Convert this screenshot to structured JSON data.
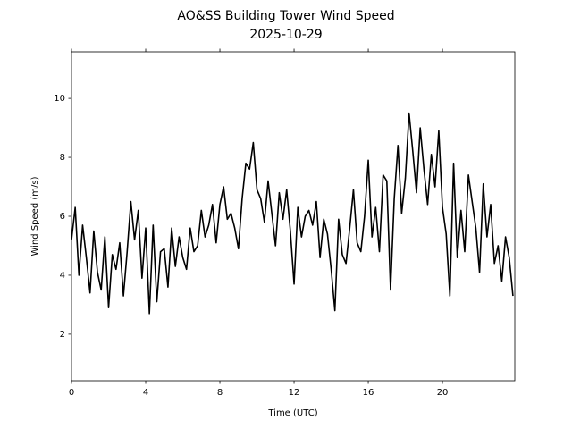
{
  "chart_data": {
    "type": "line",
    "title": "AO&SS Building Tower Wind Speed",
    "subtitle": "2025-10-29",
    "x_label": "Time (UTC)",
    "y_label": "Wind Speed (m/s)",
    "color": "#000000",
    "x": [
      0,
      0.2,
      0.4,
      0.6,
      0.8,
      1,
      1.2,
      1.4,
      1.6,
      1.8,
      2,
      2.2,
      2.4,
      2.6,
      2.8,
      3,
      3.2,
      3.4,
      3.6,
      3.8,
      4,
      4.2,
      4.4,
      4.6,
      4.8,
      5,
      5.2,
      5.4,
      5.6,
      5.8,
      6,
      6.2,
      6.4,
      6.6,
      6.8,
      7,
      7.2,
      7.4,
      7.6,
      7.8,
      8,
      8.2,
      8.4,
      8.6,
      8.8,
      9,
      9.2,
      9.4,
      9.6,
      9.8,
      10,
      10.2,
      10.4,
      10.6,
      10.8,
      11,
      11.2,
      11.4,
      11.6,
      11.8,
      12,
      12.2,
      12.4,
      12.6,
      12.8,
      13,
      13.2,
      13.4,
      13.6,
      13.8,
      14,
      14.2,
      14.4,
      14.6,
      14.8,
      15,
      15.2,
      15.4,
      15.6,
      15.8,
      16,
      16.2,
      16.4,
      16.6,
      16.8,
      17,
      17.2,
      17.4,
      17.6,
      17.8,
      18,
      18.2,
      18.4,
      18.6,
      18.8,
      19,
      19.2,
      19.4,
      19.6,
      19.8,
      20,
      20.2,
      20.4,
      20.6,
      20.8,
      21,
      21.2,
      21.4,
      21.6,
      21.8,
      22,
      22.2,
      22.4,
      22.6,
      22.8,
      23,
      23.2,
      23.4,
      23.6,
      23.8
    ],
    "values": [
      5.2,
      6.3,
      4.0,
      5.7,
      4.6,
      3.4,
      5.5,
      4.1,
      3.5,
      5.3,
      2.9,
      4.7,
      4.2,
      5.1,
      3.3,
      4.8,
      6.5,
      5.2,
      6.2,
      3.9,
      5.6,
      2.7,
      5.7,
      3.1,
      4.8,
      4.9,
      3.6,
      5.6,
      4.3,
      5.3,
      4.6,
      4.2,
      5.6,
      4.8,
      5.0,
      6.2,
      5.3,
      5.7,
      6.4,
      5.1,
      6.4,
      7.0,
      5.9,
      6.1,
      5.6,
      4.9,
      6.6,
      7.8,
      7.6,
      8.5,
      6.9,
      6.6,
      5.8,
      7.2,
      6.1,
      5.0,
      6.8,
      5.9,
      6.9,
      5.5,
      3.7,
      6.3,
      5.3,
      6.0,
      6.2,
      5.7,
      6.5,
      4.6,
      5.9,
      5.4,
      4.2,
      2.8,
      5.9,
      4.7,
      4.4,
      5.6,
      6.9,
      5.1,
      4.8,
      6.0,
      7.9,
      5.3,
      6.3,
      4.8,
      7.4,
      7.2,
      3.5,
      6.6,
      8.4,
      6.1,
      7.3,
      9.5,
      8.2,
      6.8,
      9.0,
      7.6,
      6.4,
      8.1,
      7.0,
      8.9,
      6.3,
      5.4,
      3.3,
      7.8,
      4.6,
      6.2,
      4.8,
      7.4,
      6.5,
      5.6,
      4.1,
      7.1,
      5.3,
      6.4,
      4.4,
      5.0,
      3.8,
      5.3,
      4.6,
      3.3
    ],
    "xlim": [
      0,
      23.9
    ],
    "xticks": [
      0,
      4,
      8,
      12,
      16,
      20
    ],
    "ylim": [
      0.42,
      11.58
    ],
    "yticks": [
      2,
      4,
      6,
      8,
      10
    ]
  }
}
